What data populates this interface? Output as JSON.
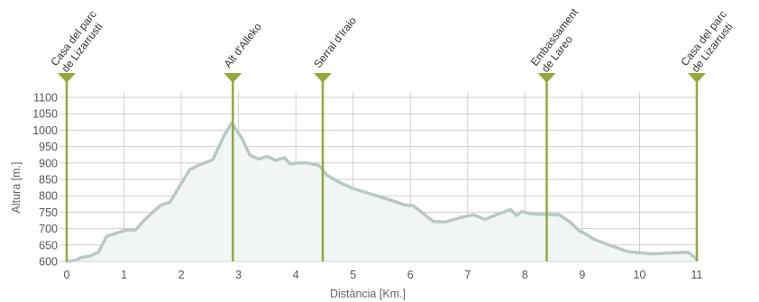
{
  "chart_data": {
    "type": "area",
    "title": "",
    "xlabel": "Distància [Km.]",
    "ylabel": "Altura [m.]",
    "xlim": [
      0,
      11
    ],
    "ylim": [
      600,
      1100
    ],
    "x_ticks": [
      0,
      1,
      2,
      3,
      4,
      5,
      6,
      7,
      8,
      9,
      10,
      11
    ],
    "y_ticks": [
      600,
      650,
      700,
      750,
      800,
      850,
      900,
      950,
      1000,
      1050,
      1100
    ],
    "grid": true,
    "colors": {
      "line": "#b9c8c6",
      "fill": "#f1f5f6",
      "marker": "#96a83a",
      "grid": "#cfcfcf"
    },
    "series": [
      {
        "x": [
          0,
          0.15,
          0.25,
          0.4,
          0.55,
          0.7,
          0.9,
          1.05,
          1.2,
          1.35,
          1.5,
          1.65,
          1.8,
          2.0,
          2.15,
          2.3,
          2.55,
          2.75,
          2.88,
          3.05,
          3.2,
          3.35,
          3.5,
          3.65,
          3.8,
          3.9,
          4.05,
          4.2,
          4.4,
          4.55,
          4.75,
          5.0,
          5.3,
          5.6,
          5.9,
          6.05,
          6.4,
          6.6,
          6.9,
          7.1,
          7.3,
          7.55,
          7.75,
          7.85,
          7.95,
          8.1,
          8.35,
          8.6,
          8.8,
          8.95,
          9.05,
          9.2,
          9.5,
          9.8,
          10.2,
          10.55,
          10.85,
          11.0
        ],
        "y": [
          600,
          603,
          612,
          616,
          628,
          677,
          688,
          696,
          696,
          725,
          750,
          772,
          780,
          838,
          880,
          893,
          910,
          985,
          1022,
          978,
          924,
          912,
          920,
          908,
          916,
          897,
          900,
          900,
          893,
          862,
          842,
          822,
          806,
          790,
          772,
          770,
          722,
          720,
          735,
          742,
          728,
          746,
          758,
          740,
          752,
          745,
          743,
          742,
          718,
          693,
          685,
          668,
          648,
          630,
          623,
          626,
          628,
          607
        ]
      }
    ],
    "waypoints": [
      {
        "x": 0.0,
        "label_lines": [
          "Casa del parc",
          "de Lizarrusti"
        ]
      },
      {
        "x": 2.9,
        "label_lines": [
          "Alt d'Alleko"
        ]
      },
      {
        "x": 4.47,
        "label_lines": [
          "Serral d'Iraio"
        ]
      },
      {
        "x": 8.38,
        "label_lines": [
          "Embassament",
          "de Lareo"
        ]
      },
      {
        "x": 11.0,
        "label_lines": [
          "Casa del parc",
          "de Lizarrusti"
        ]
      }
    ]
  }
}
